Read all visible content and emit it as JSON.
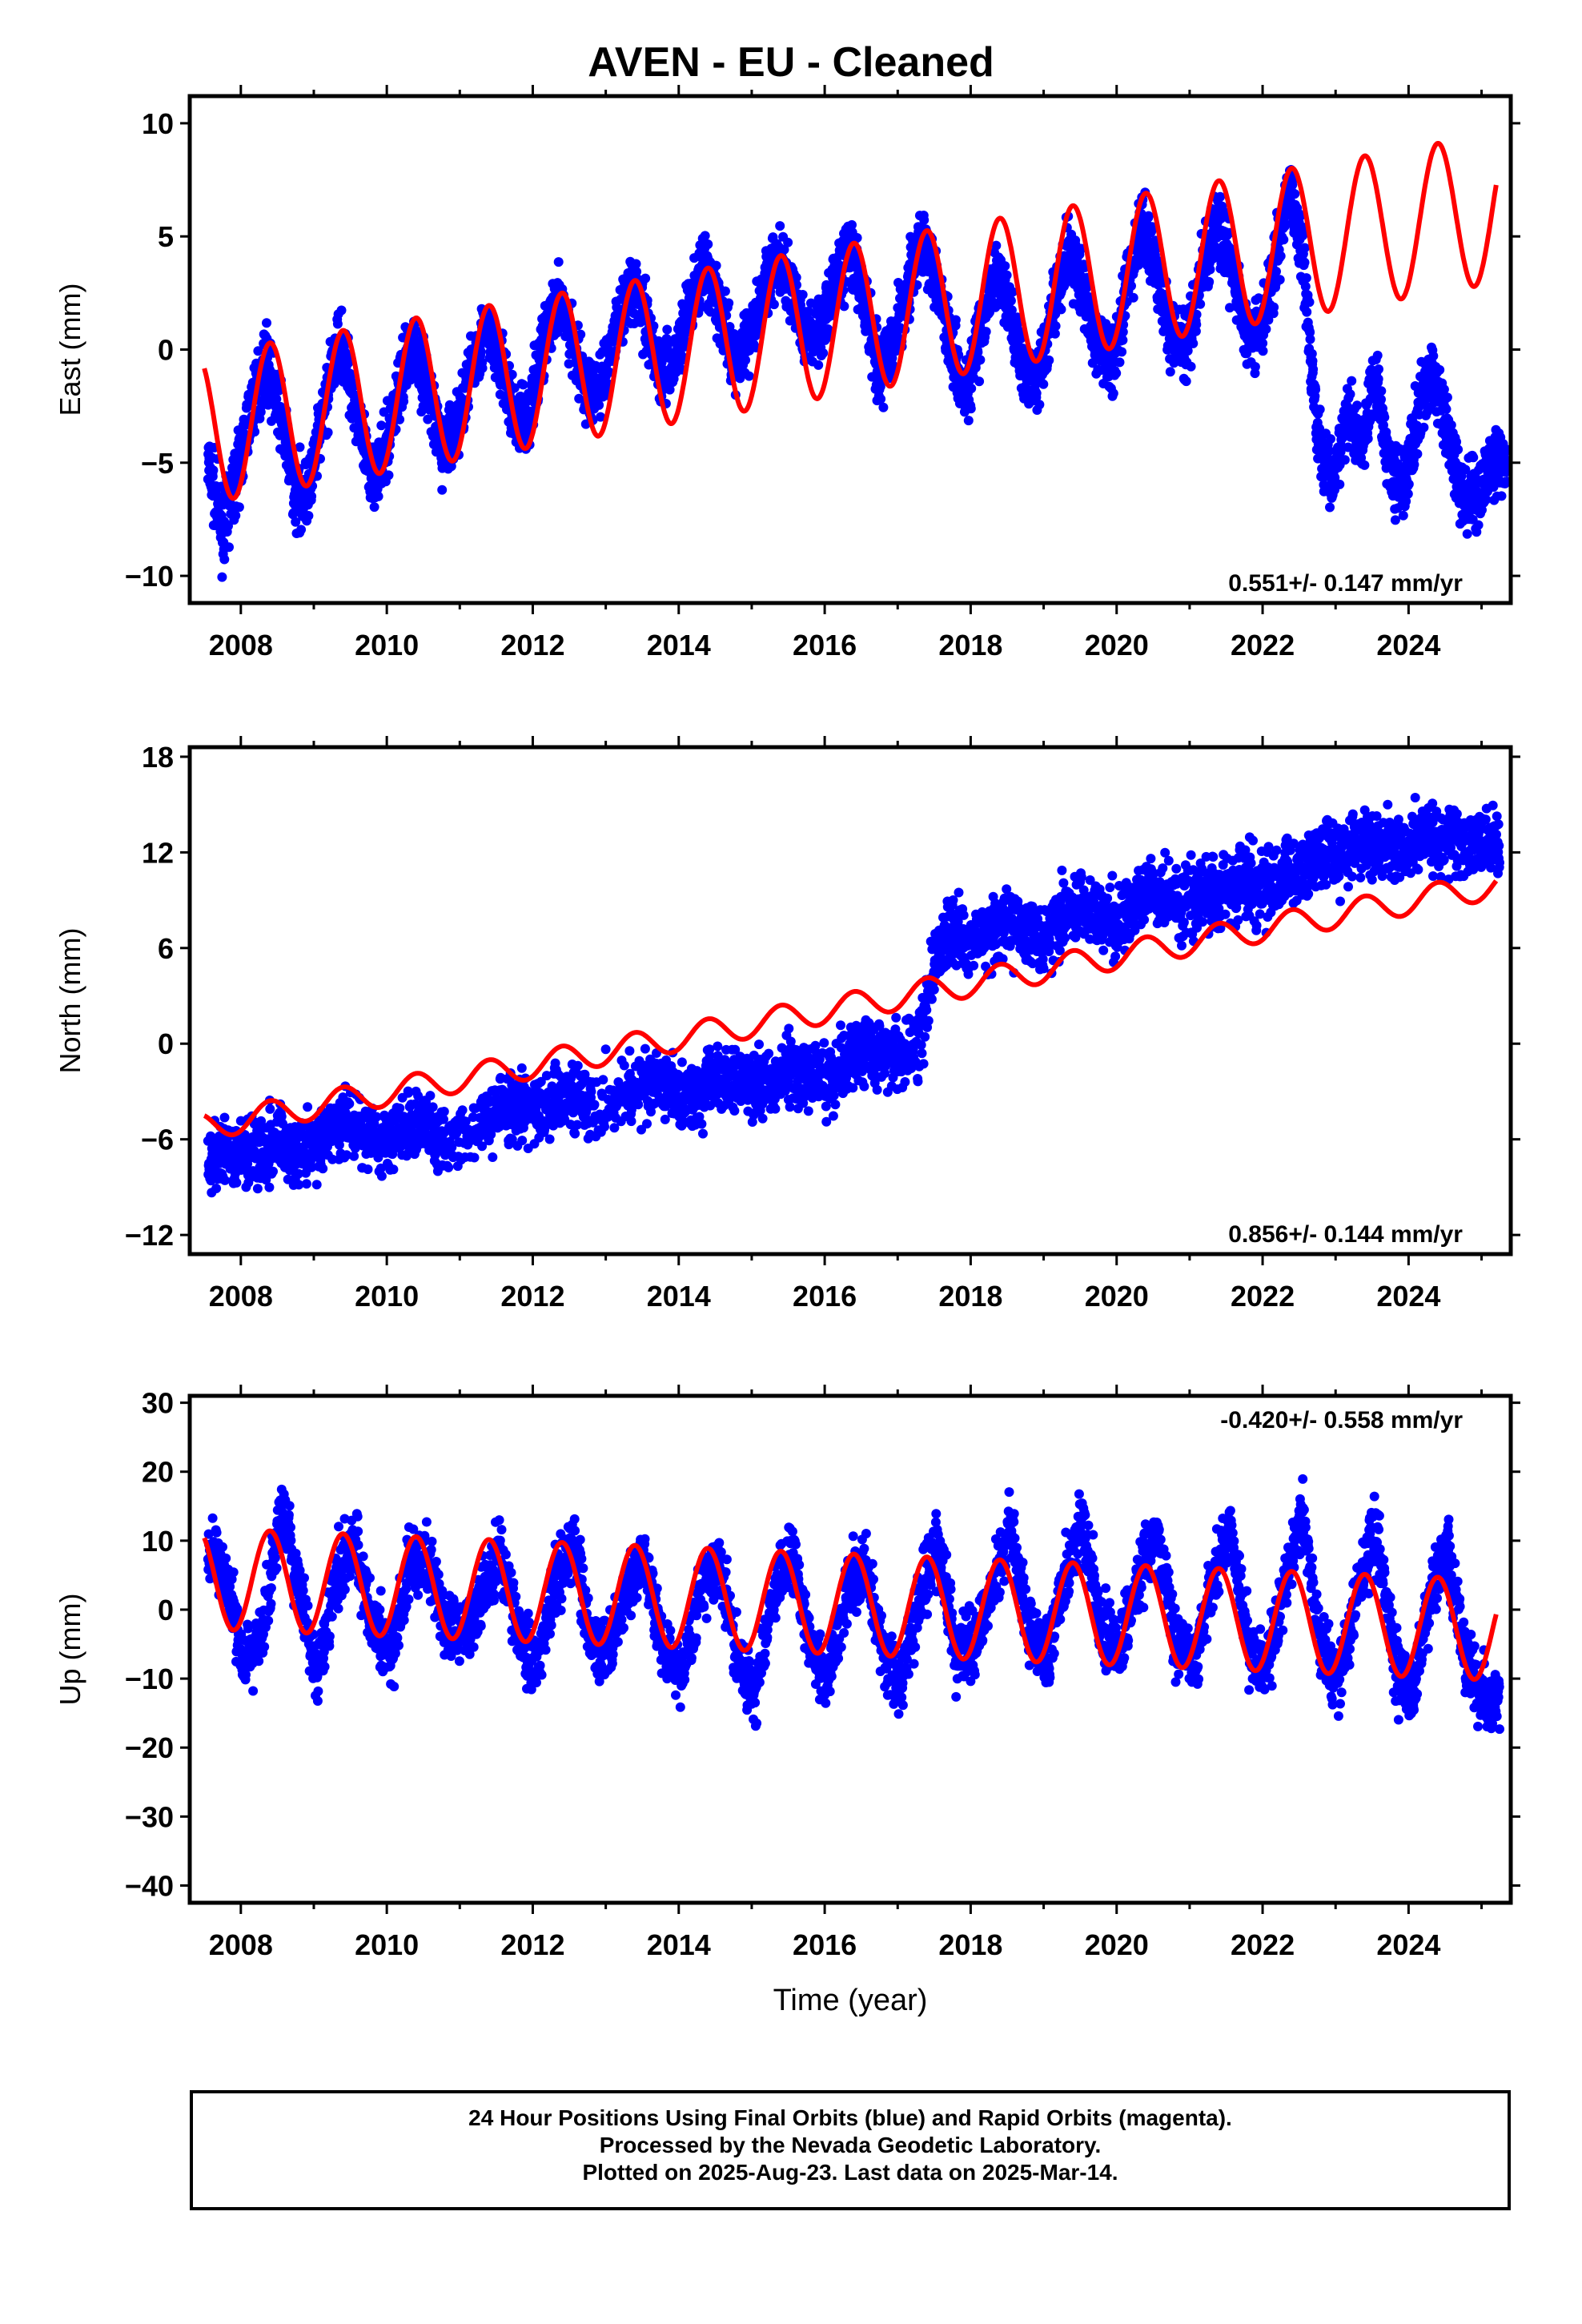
{
  "title": "AVEN  - EU - Cleaned",
  "xlabel": "Time (year)",
  "footer": {
    "line1": "24 Hour Positions Using Final Orbits (blue) and Rapid Orbits (magenta).",
    "line2": "Processed by the Nevada Geodetic Laboratory.",
    "line3": "Plotted on 2025-Aug-23. Last data on 2025-Mar-14."
  },
  "colors": {
    "data": "#0000ff",
    "model": "#ff0000",
    "axis": "#000000"
  },
  "chart_data": [
    {
      "type": "scatter",
      "component": "east",
      "ylabel": "East (mm)",
      "rate_label": "0.551+/- 0.147 mm/yr",
      "xlim": [
        2007.3,
        2025.4
      ],
      "ylim": [
        -11.2,
        11.2
      ],
      "yticks": [
        -10,
        -5,
        0,
        5,
        10
      ],
      "xticks": [
        2008,
        2010,
        2012,
        2014,
        2016,
        2018,
        2020,
        2022,
        2024
      ],
      "series": [
        {
          "role": "observations",
          "x": [
            2007.55,
            2007.75,
            2007.95,
            2008.15,
            2008.35,
            2008.55,
            2008.75,
            2008.95,
            2009.15,
            2009.35,
            2009.55,
            2009.75,
            2009.95,
            2010.15,
            2010.35,
            2010.55,
            2010.75,
            2010.95,
            2011.15,
            2011.35,
            2011.55,
            2011.75,
            2011.95,
            2012.15,
            2012.35,
            2012.55,
            2012.75,
            2012.95,
            2013.15,
            2013.35,
            2013.55,
            2013.75,
            2013.95,
            2014.15,
            2014.35,
            2014.55,
            2014.75,
            2014.95,
            2015.15,
            2015.35,
            2015.55,
            2015.75,
            2015.95,
            2016.15,
            2016.35,
            2016.55,
            2016.75,
            2016.95,
            2017.15,
            2017.35,
            2017.55,
            2017.75,
            2017.95,
            2018.15,
            2018.35,
            2018.55,
            2018.75,
            2018.95,
            2019.15,
            2019.35,
            2019.55,
            2019.75,
            2019.95,
            2020.15,
            2020.35,
            2020.55,
            2020.75,
            2020.95,
            2021.15,
            2021.35,
            2021.55,
            2021.75,
            2021.95,
            2022.15,
            2022.35,
            2022.55,
            2022.75,
            2022.95,
            2023.15,
            2023.35,
            2023.55,
            2023.75,
            2023.95,
            2024.15,
            2024.35,
            2024.55,
            2024.75,
            2024.95,
            2025.15
          ],
          "y": [
            -5.0,
            -8.0,
            -5.5,
            -2.5,
            -0.5,
            -3.0,
            -6.5,
            -6.0,
            -2.5,
            0.5,
            -2.0,
            -5.5,
            -5.0,
            -2.0,
            0.5,
            -1.5,
            -4.5,
            -3.5,
            -1.0,
            1.0,
            -0.5,
            -3.0,
            -3.0,
            0.5,
            2.0,
            0.5,
            -2.0,
            -1.5,
            1.0,
            3.0,
            1.5,
            -1.0,
            -0.5,
            2.0,
            3.5,
            2.0,
            -0.5,
            0.5,
            2.5,
            4.0,
            2.5,
            0.5,
            1.0,
            3.0,
            4.5,
            2.0,
            -1.0,
            0.5,
            3.0,
            5.0,
            3.0,
            0.0,
            -2.0,
            1.0,
            3.5,
            1.5,
            -1.0,
            -1.0,
            2.0,
            4.5,
            2.5,
            0.0,
            -0.5,
            3.0,
            5.5,
            3.5,
            0.5,
            0.0,
            3.0,
            5.5,
            4.0,
            1.0,
            0.5,
            3.5,
            7.0,
            4.5,
            -3.5,
            -6.0,
            -3.0,
            -4.0,
            -1.0,
            -5.5,
            -6.0,
            -2.5,
            -1.0,
            -4.0,
            -6.5,
            -6.5,
            -5.0
          ]
        },
        {
          "role": "model",
          "rate": 0.551,
          "offset": -3.5,
          "amplitude": 3.3,
          "model_end": 2025.2
        }
      ]
    },
    {
      "type": "scatter",
      "component": "north",
      "ylabel": "North (mm)",
      "rate_label": "0.856+/- 0.144 mm/yr",
      "xlim": [
        2007.3,
        2025.4
      ],
      "ylim": [
        -13.2,
        18.6
      ],
      "yticks": [
        -12,
        -6,
        0,
        6,
        12,
        18
      ],
      "xticks": [
        2008,
        2010,
        2012,
        2014,
        2016,
        2018,
        2020,
        2022,
        2024
      ],
      "series": [
        {
          "role": "observations",
          "x": [
            2007.55,
            2007.8,
            2008.05,
            2008.3,
            2008.55,
            2008.8,
            2009.05,
            2009.3,
            2009.55,
            2009.8,
            2010.05,
            2010.3,
            2010.55,
            2010.8,
            2011.3,
            2011.55,
            2011.8,
            2012.05,
            2012.3,
            2012.55,
            2012.8,
            2013.3,
            2013.55,
            2013.8,
            2014.05,
            2014.3,
            2014.55,
            2014.8,
            2015.05,
            2015.3,
            2015.55,
            2015.8,
            2016.05,
            2016.3,
            2016.55,
            2016.8,
            2017.05,
            2017.3,
            2017.55,
            2017.8,
            2018.05,
            2018.3,
            2018.55,
            2018.8,
            2019.05,
            2019.3,
            2019.55,
            2019.8,
            2020.05,
            2020.3,
            2020.55,
            2020.8,
            2021.05,
            2021.3,
            2021.55,
            2021.8,
            2022.05,
            2022.3,
            2022.55,
            2022.8,
            2023.05,
            2023.3,
            2023.55,
            2023.8,
            2024.05,
            2024.3,
            2024.55,
            2024.8,
            2025.05
          ],
          "y": [
            -7.5,
            -7.0,
            -6.5,
            -6.5,
            -6.0,
            -7.0,
            -6.0,
            -5.5,
            -5.0,
            -6.0,
            -6.0,
            -5.0,
            -5.0,
            -6.5,
            -5.0,
            -4.0,
            -4.0,
            -4.5,
            -3.5,
            -3.0,
            -4.0,
            -3.0,
            -2.5,
            -2.5,
            -3.5,
            -3.0,
            -2.0,
            -2.0,
            -2.5,
            -2.5,
            -1.5,
            -2.0,
            -2.0,
            -1.0,
            -0.5,
            -0.5,
            -1.0,
            0.0,
            6.0,
            7.0,
            6.5,
            7.0,
            7.5,
            7.0,
            7.0,
            8.0,
            8.5,
            8.0,
            7.5,
            9.0,
            9.5,
            9.0,
            9.0,
            9.5,
            10.0,
            10.0,
            10.0,
            10.5,
            11.0,
            11.5,
            12.0,
            12.5,
            12.5,
            12.0,
            12.5,
            13.0,
            13.0,
            12.5,
            12.5
          ]
        },
        {
          "role": "model",
          "rate": 0.856,
          "offset": -5.2,
          "amplitude": 0.85,
          "model_end": 2025.2
        }
      ]
    },
    {
      "type": "scatter",
      "component": "up",
      "ylabel": "Up (mm)",
      "rate_label": "-0.420+/- 0.558 mm/yr",
      "xlim": [
        2007.3,
        2025.4
      ],
      "ylim": [
        -42.5,
        31.0
      ],
      "yticks": [
        -40,
        -30,
        -20,
        -10,
        0,
        10,
        20,
        30
      ],
      "xticks": [
        2008,
        2010,
        2012,
        2014,
        2016,
        2018,
        2020,
        2022,
        2024
      ],
      "series": [
        {
          "role": "observations",
          "x": [
            2007.55,
            2007.8,
            2008.05,
            2008.3,
            2008.55,
            2008.8,
            2009.05,
            2009.3,
            2009.55,
            2009.8,
            2010.05,
            2010.3,
            2010.55,
            2010.8,
            2011.05,
            2011.3,
            2011.55,
            2011.8,
            2012.05,
            2012.3,
            2012.55,
            2012.8,
            2013.05,
            2013.3,
            2013.55,
            2013.8,
            2014.05,
            2014.3,
            2014.55,
            2014.8,
            2015.05,
            2015.3,
            2015.55,
            2015.8,
            2016.05,
            2016.3,
            2016.55,
            2016.8,
            2017.05,
            2017.3,
            2017.55,
            2017.8,
            2018.05,
            2018.3,
            2018.55,
            2018.8,
            2019.05,
            2019.3,
            2019.55,
            2019.8,
            2020.05,
            2020.3,
            2020.55,
            2020.8,
            2021.05,
            2021.3,
            2021.55,
            2021.8,
            2022.05,
            2022.3,
            2022.55,
            2022.8,
            2023.05,
            2023.3,
            2023.55,
            2023.8,
            2024.05,
            2024.3,
            2024.55,
            2024.8,
            2025.05
          ],
          "y": [
            8,
            5,
            -8,
            -2,
            14,
            3,
            -10,
            5,
            10,
            -2,
            -7,
            6,
            8,
            -3,
            -4,
            2,
            8,
            -3,
            -8,
            3,
            10,
            -4,
            -6,
            4,
            6,
            -6,
            -9,
            4,
            7,
            -7,
            -12,
            2,
            8,
            -5,
            -10,
            3,
            7,
            -6,
            -11,
            2,
            10,
            -6,
            -5,
            3,
            12,
            -3,
            -7,
            5,
            12,
            -3,
            -6,
            5,
            11,
            -5,
            -8,
            4,
            12,
            -5,
            -9,
            4,
            14,
            -6,
            -10,
            3,
            12,
            -7,
            -13,
            3,
            8,
            -8,
            -13
          ]
        },
        {
          "role": "model",
          "rate": -0.42,
          "offset": 4.5,
          "amplitude": 7.3,
          "model_end": 2025.2
        }
      ]
    }
  ]
}
